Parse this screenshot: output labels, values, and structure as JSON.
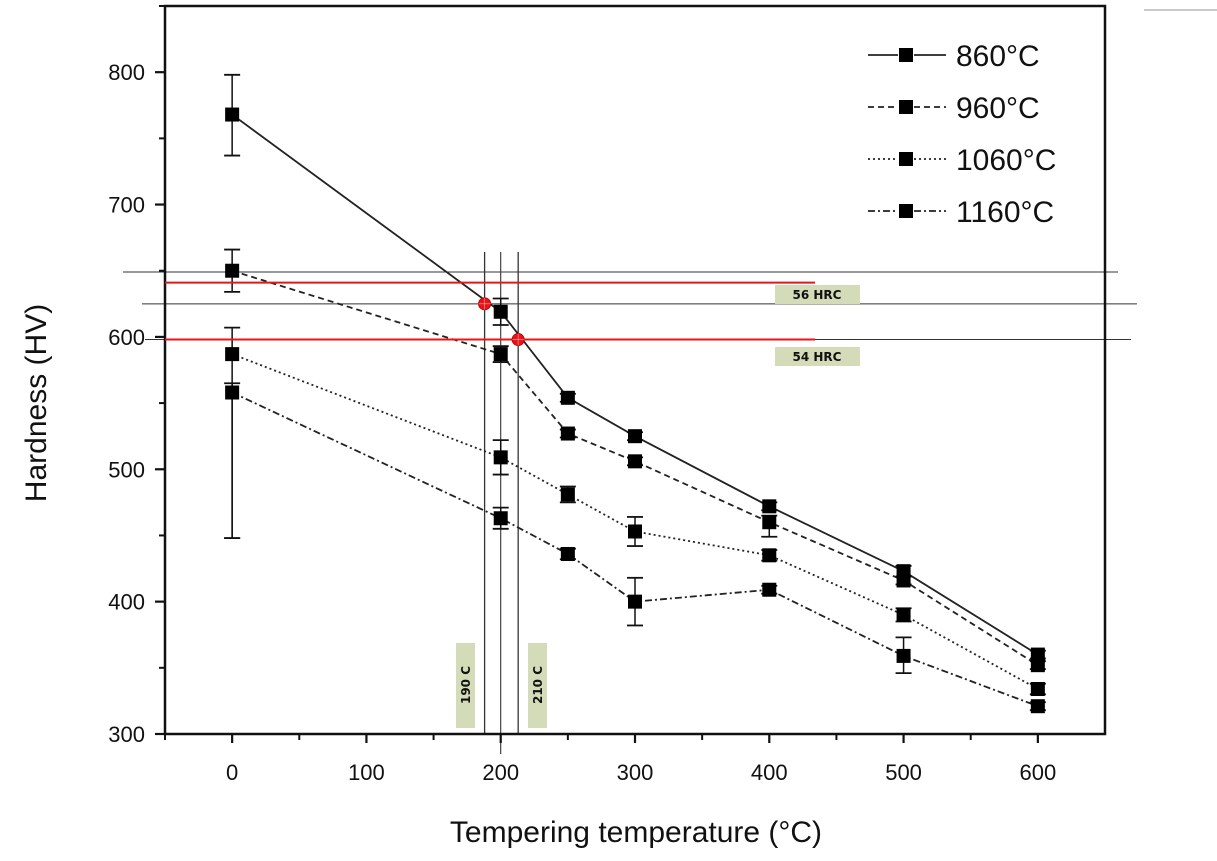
{
  "chart_data": {
    "type": "line",
    "title": "",
    "xlabel": "Tempering temperature (°C)",
    "ylabel": "Hardness (HV)",
    "xlim": [
      -50,
      650
    ],
    "ylim": [
      300,
      850
    ],
    "xticks": [
      0,
      100,
      200,
      300,
      400,
      500,
      600
    ],
    "xtick_labels": [
      "0",
      "100",
      "200",
      "300",
      "400",
      "500",
      "600"
    ],
    "yticks": [
      300,
      400,
      500,
      600,
      700,
      800
    ],
    "ytick_labels": [
      "300",
      "400",
      "500",
      "600",
      "700",
      "800"
    ],
    "grid": false,
    "legend_position": "top-right",
    "x": [
      0,
      200,
      250,
      300,
      400,
      500,
      600
    ],
    "series": [
      {
        "name": "860°C",
        "style": "solid",
        "values": [
          768,
          619,
          554,
          525,
          472,
          423,
          360
        ],
        "err_low": [
          737,
          609,
          551,
          522,
          469,
          419,
          357
        ],
        "err_high": [
          798,
          629,
          557,
          528,
          475,
          427,
          363
        ]
      },
      {
        "name": "960°C",
        "style": "dashed",
        "values": [
          650,
          587,
          527,
          506,
          460,
          416,
          352
        ],
        "err_low": [
          634,
          581,
          524,
          503,
          449,
          413,
          349
        ],
        "err_high": [
          666,
          593,
          530,
          509,
          465,
          419,
          355
        ]
      },
      {
        "name": "1060°C",
        "style": "dotted",
        "values": [
          587,
          509,
          481,
          453,
          435,
          390,
          334
        ],
        "err_low": [
          448,
          496,
          475,
          442,
          431,
          385,
          330
        ],
        "err_high": [
          607,
          522,
          487,
          464,
          439,
          395,
          338
        ]
      },
      {
        "name": "1160°C",
        "style": "dashdot",
        "values": [
          558,
          463,
          436,
          400,
          409,
          359,
          321
        ],
        "err_low": [
          448,
          455,
          432,
          382,
          406,
          346,
          318
        ],
        "err_high": [
          565,
          471,
          440,
          418,
          412,
          373,
          324
        ]
      }
    ],
    "annotations": {
      "hrc_lines": [
        {
          "label": "56 HRC",
          "value": 641,
          "color": "#e8141b"
        },
        {
          "label": "54 HRC",
          "value": 598,
          "color": "#e8141b"
        }
      ],
      "reference_lines_y": [
        649,
        625,
        598
      ],
      "temperature_lines": [
        {
          "label": "190 C",
          "value": 188
        },
        {
          "label": "210 C",
          "value": 213
        }
      ],
      "center_line_x": 200,
      "intersection_points": [
        {
          "x": 188,
          "y": 625
        },
        {
          "x": 213,
          "y": 598
        }
      ],
      "label_bg_color": "#d4dbb8"
    }
  }
}
